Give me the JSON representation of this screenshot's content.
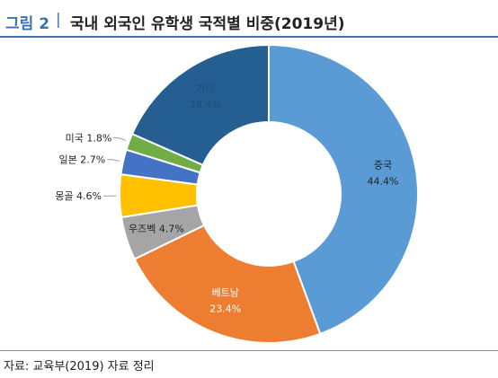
{
  "figure": {
    "label": "그림 2",
    "separator": "|",
    "title": "국내 외국인 유학생 국적별 비중(2019년)"
  },
  "source": "자료: 교육부(2019) 자료 정리",
  "chart_data": {
    "type": "pie",
    "donut": true,
    "categories": [
      "중국",
      "베트남",
      "우즈벡",
      "몽골",
      "일본",
      "미국",
      "기타"
    ],
    "values": [
      44.4,
      23.4,
      4.7,
      4.6,
      2.7,
      1.8,
      18.4
    ],
    "value_labels": [
      "44.4%",
      "23.4%",
      "4.7%",
      "4.6%",
      "2.7%",
      "1.8%",
      "18.4%"
    ],
    "colors": [
      "#5b9bd5",
      "#ed7d31",
      "#a5a5a5",
      "#ffc000",
      "#4472c4",
      "#70ad47",
      "#255e91"
    ],
    "label_colors": [
      "#222222",
      "#ffffff",
      "#222222",
      "#222222",
      "#222222",
      "#222222",
      "#1e4f7a"
    ],
    "outside_labels": [
      false,
      false,
      false,
      true,
      true,
      true,
      false
    ]
  }
}
